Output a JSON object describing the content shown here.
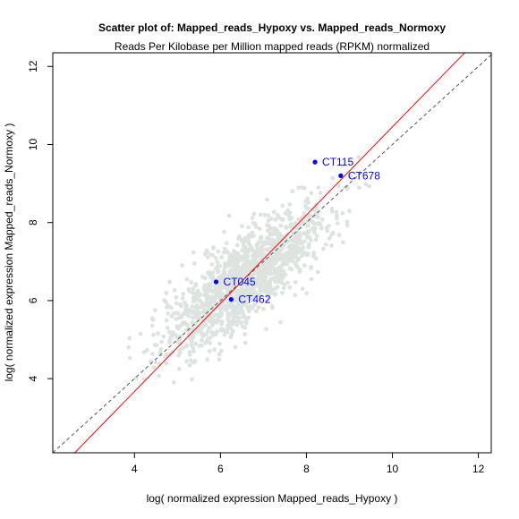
{
  "chart_data": {
    "type": "scatter",
    "title": "Scatter plot of: Mapped_reads_Hypoxy vs. Mapped_reads_Normoxy",
    "subtitle": "Reads Per Kilobase per Million mapped reads (RPKM) normalized",
    "xlabel": "log( normalized expression Mapped_reads_Hypoxy )",
    "ylabel": "log( normalized expression Mapped_reads_Normoxy )",
    "xlim": [
      2.1,
      12.3
    ],
    "ylim": [
      2.1,
      12.35
    ],
    "x_ticks": [
      4,
      6,
      8,
      10,
      12
    ],
    "y_ticks": [
      4,
      6,
      8,
      10,
      12
    ],
    "grid": false,
    "background_points": {
      "count": 1400,
      "color": "#dde4e0",
      "center_x": 6.6,
      "center_y": 6.6,
      "spread_main": 1.25,
      "spread_residual": 0.42,
      "x_range": [
        2.7,
        11.5
      ],
      "y_range": [
        2.4,
        11.2
      ]
    },
    "highlighted": [
      {
        "label": "CT115",
        "x": 8.2,
        "y": 9.55
      },
      {
        "label": "CT678",
        "x": 8.8,
        "y": 9.2
      },
      {
        "label": "CT045",
        "x": 5.9,
        "y": 6.48
      },
      {
        "label": "CT462",
        "x": 6.25,
        "y": 6.03
      }
    ],
    "highlight_color": "#0000ff",
    "lines": [
      {
        "name": "fit",
        "color": "#ff0000",
        "style": "solid",
        "slope": 1.13,
        "intercept": -0.85
      },
      {
        "name": "identity",
        "color": "#555555",
        "style": "dashed",
        "slope": 1.0,
        "intercept": 0.0
      }
    ]
  }
}
